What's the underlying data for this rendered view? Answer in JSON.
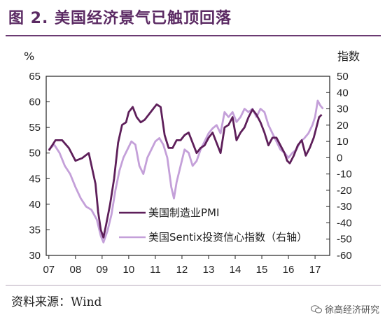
{
  "figure_title": "图 2. 美国经济景气已触顶回落",
  "source_text": "资料来源：Wind",
  "watermark_text": "徐高经济研究",
  "chart_data": {
    "type": "line",
    "ylabel_left": "%",
    "ylabel_right": "指数",
    "left_ylim": [
      30,
      65
    ],
    "right_ylim": [
      -60,
      50
    ],
    "left_ticks": [
      "30",
      "35",
      "40",
      "45",
      "50",
      "55",
      "60",
      "65"
    ],
    "right_ticks": [
      "-60",
      "-50",
      "-40",
      "-30",
      "-20",
      "-10",
      "0",
      "10",
      "20",
      "30",
      "40",
      "50"
    ],
    "x_ticks": [
      "07",
      "08",
      "09",
      "10",
      "11",
      "12",
      "13",
      "14",
      "15",
      "16",
      "17"
    ],
    "grid": false,
    "legend_position": "bottom-center",
    "series": [
      {
        "name": "美国制造业PMI",
        "axis": "left",
        "color": "#5e1f5a",
        "x": [
          2007.0,
          2007.25,
          2007.5,
          2007.75,
          2008.0,
          2008.25,
          2008.5,
          2008.75,
          2008.85,
          2008.95,
          2009.05,
          2009.15,
          2009.3,
          2009.45,
          2009.6,
          2009.75,
          2009.9,
          2010.0,
          2010.15,
          2010.3,
          2010.45,
          2010.6,
          2010.75,
          2010.9,
          2011.05,
          2011.2,
          2011.35,
          2011.5,
          2011.65,
          2011.8,
          2011.95,
          2012.1,
          2012.25,
          2012.4,
          2012.55,
          2012.7,
          2012.85,
          2013.0,
          2013.15,
          2013.3,
          2013.45,
          2013.6,
          2013.75,
          2013.9,
          2014.05,
          2014.2,
          2014.35,
          2014.5,
          2014.65,
          2014.8,
          2014.95,
          2015.1,
          2015.25,
          2015.4,
          2015.55,
          2015.7,
          2015.85,
          2015.95,
          2016.05,
          2016.2,
          2016.35,
          2016.5,
          2016.65,
          2016.8,
          2016.95,
          2017.05,
          2017.15,
          2017.25
        ],
        "values": [
          50.5,
          52.5,
          52.5,
          51,
          48.5,
          49,
          50,
          44,
          38.5,
          35,
          33.5,
          36,
          40,
          45,
          52,
          55.5,
          56,
          58,
          59,
          57,
          56,
          56.5,
          57.5,
          58.5,
          59.5,
          59,
          53.5,
          51,
          51,
          52.5,
          52.5,
          53.5,
          54,
          52,
          50,
          51,
          51.5,
          53,
          54,
          52,
          50,
          55,
          55.5,
          57,
          52.5,
          54,
          55,
          57,
          58.5,
          57.5,
          56,
          54,
          51.5,
          53,
          53,
          51.5,
          50,
          48.5,
          48,
          49.5,
          51.5,
          52.5,
          49.5,
          51,
          53,
          55,
          57,
          57.5
        ]
      },
      {
        "name": "美国Sentix投资信心指数（右轴）",
        "axis": "right",
        "color": "#c4a0d9",
        "x": [
          2007.0,
          2007.2,
          2007.4,
          2007.6,
          2007.8,
          2008.0,
          2008.2,
          2008.4,
          2008.6,
          2008.8,
          2008.95,
          2009.05,
          2009.2,
          2009.35,
          2009.5,
          2009.65,
          2009.8,
          2009.95,
          2010.1,
          2010.25,
          2010.4,
          2010.55,
          2010.7,
          2010.85,
          2011.0,
          2011.15,
          2011.3,
          2011.45,
          2011.6,
          2011.7,
          2011.8,
          2011.95,
          2012.1,
          2012.25,
          2012.4,
          2012.55,
          2012.7,
          2012.85,
          2013.0,
          2013.15,
          2013.3,
          2013.45,
          2013.6,
          2013.75,
          2013.9,
          2014.05,
          2014.2,
          2014.35,
          2014.5,
          2014.65,
          2014.8,
          2014.95,
          2015.1,
          2015.25,
          2015.4,
          2015.55,
          2015.7,
          2015.85,
          2016.0,
          2016.15,
          2016.3,
          2016.45,
          2016.6,
          2016.75,
          2016.9,
          2017.0,
          2017.1,
          2017.2,
          2017.3
        ],
        "values": [
          5,
          8,
          3,
          -5,
          -10,
          -18,
          -25,
          -30,
          -32,
          -38,
          -48,
          -52,
          -45,
          -35,
          -20,
          -8,
          0,
          5,
          10,
          8,
          -5,
          -10,
          0,
          5,
          10,
          12,
          8,
          0,
          -18,
          -25,
          -15,
          -5,
          5,
          3,
          -5,
          -2,
          5,
          10,
          15,
          18,
          20,
          15,
          28,
          25,
          28,
          22,
          25,
          30,
          28,
          30,
          25,
          30,
          28,
          20,
          15,
          10,
          5,
          3,
          0,
          3,
          5,
          10,
          12,
          15,
          20,
          25,
          35,
          32,
          30
        ]
      }
    ]
  }
}
